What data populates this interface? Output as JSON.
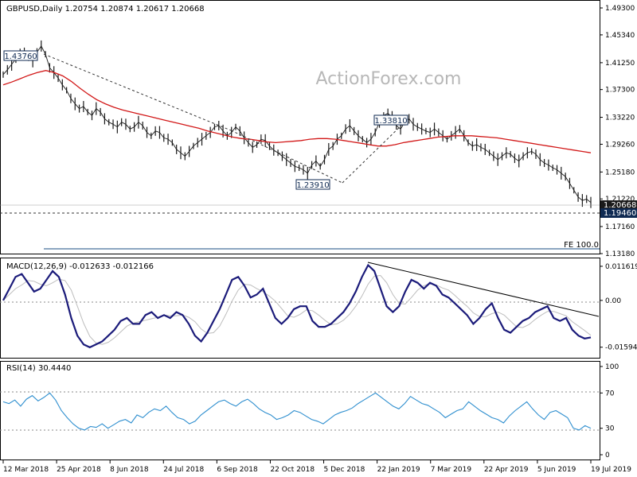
{
  "header": {
    "symbol_line": "GBPUSD,Daily  1.20754 1.20874 1.20617 1.20668",
    "watermark": "ActionForex.com"
  },
  "chart_data": [
    {
      "type": "candlestick",
      "title": "GBPUSD,Daily  1.20754 1.20874 1.20617 1.20668",
      "ylim": [
        1.1318,
        1.493
      ],
      "y_ticks": [
        "1.49300",
        "1.45340",
        "1.41250",
        "1.37300",
        "1.33220",
        "1.29260",
        "1.25180",
        "1.21220",
        "1.17160",
        "1.13180"
      ],
      "x_ticks": [
        "12 Mar 2018",
        "25 Apr 2018",
        "8 Jun 2018",
        "24 Jul 2018",
        "6 Sep 2018",
        "22 Oct 2018",
        "5 Dec 2018",
        "22 Jan 2019",
        "7 Mar 2019",
        "22 Apr 2019",
        "5 Jun 2019",
        "19 Jul 2019"
      ],
      "series": [
        {
          "name": "price",
          "values": [
            1.395,
            1.402,
            1.41,
            1.418,
            1.425,
            1.43,
            1.422,
            1.415,
            1.428,
            1.437,
            1.425,
            1.405,
            1.398,
            1.39,
            1.38,
            1.372,
            1.36,
            1.352,
            1.345,
            1.348,
            1.34,
            1.335,
            1.345,
            1.34,
            1.33,
            1.325,
            1.322,
            1.318,
            1.325,
            1.322,
            1.315,
            1.318,
            1.325,
            1.32,
            1.31,
            1.305,
            1.312,
            1.31,
            1.302,
            1.3,
            1.295,
            1.285,
            1.28,
            1.275,
            1.282,
            1.29,
            1.295,
            1.3,
            1.305,
            1.31,
            1.318,
            1.32,
            1.312,
            1.305,
            1.31,
            1.318,
            1.312,
            1.302,
            1.295,
            1.288,
            1.292,
            1.3,
            1.298,
            1.29,
            1.284,
            1.28,
            1.275,
            1.27,
            1.265,
            1.26,
            1.258,
            1.255,
            1.25,
            1.262,
            1.268,
            1.26,
            1.27,
            1.285,
            1.29,
            1.3,
            1.305,
            1.315,
            1.32,
            1.312,
            1.305,
            1.3,
            1.295,
            1.3,
            1.31,
            1.325,
            1.335,
            1.338,
            1.332,
            1.32,
            1.315,
            1.325,
            1.33,
            1.322,
            1.318,
            1.315,
            1.312,
            1.31,
            1.315,
            1.31,
            1.305,
            1.3,
            1.305,
            1.31,
            1.315,
            1.305,
            1.295,
            1.29,
            1.292,
            1.288,
            1.285,
            1.28,
            1.275,
            1.27,
            1.275,
            1.28,
            1.278,
            1.272,
            1.268,
            1.275,
            1.28,
            1.282,
            1.278,
            1.27,
            1.265,
            1.262,
            1.258,
            1.255,
            1.25,
            1.245,
            1.235,
            1.225,
            1.215,
            1.21,
            1.212,
            1.207
          ]
        },
        {
          "name": "moving average",
          "values": [
            1.38,
            1.384,
            1.389,
            1.394,
            1.398,
            1.401,
            1.398,
            1.393,
            1.385,
            1.375,
            1.366,
            1.358,
            1.352,
            1.347,
            1.343,
            1.34,
            1.337,
            1.334,
            1.331,
            1.328,
            1.325,
            1.322,
            1.319,
            1.316,
            1.312,
            1.309,
            1.306,
            1.303,
            1.301,
            1.3,
            1.298,
            1.296,
            1.295,
            1.296,
            1.297,
            1.298,
            1.3,
            1.301,
            1.301,
            1.3,
            1.298,
            1.296,
            1.294,
            1.292,
            1.29,
            1.29,
            1.292,
            1.295,
            1.297,
            1.299,
            1.301,
            1.303,
            1.304,
            1.305,
            1.305,
            1.305,
            1.304,
            1.303,
            1.302,
            1.3,
            1.298,
            1.296,
            1.294,
            1.292,
            1.29,
            1.288,
            1.286,
            1.284,
            1.282,
            1.28
          ]
        }
      ],
      "annotations": [
        "1.43760",
        "1.23910",
        "1.33810",
        "1.20668",
        "1.19460",
        "FE 100.0"
      ]
    },
    {
      "type": "line",
      "title": "MACD(12,26,9) -0.012633 -0.012166",
      "ylim": [
        -0.019,
        0.0135
      ],
      "y_ticks": [
        "0.011619",
        "0.00",
        "-0.015949"
      ],
      "series": [
        {
          "name": "MACD",
          "values": [
            0.0,
            0.004,
            0.008,
            0.009,
            0.006,
            0.003,
            0.004,
            0.007,
            0.01,
            0.008,
            0.002,
            -0.006,
            -0.012,
            -0.015,
            -0.016,
            -0.015,
            -0.014,
            -0.012,
            -0.01,
            -0.007,
            -0.006,
            -0.008,
            -0.008,
            -0.005,
            -0.004,
            -0.006,
            -0.005,
            -0.006,
            -0.004,
            -0.005,
            -0.008,
            -0.012,
            -0.014,
            -0.011,
            -0.007,
            -0.003,
            0.002,
            0.007,
            0.008,
            0.005,
            0.001,
            0.002,
            0.004,
            -0.001,
            -0.006,
            -0.008,
            -0.006,
            -0.003,
            -0.002,
            -0.002,
            -0.007,
            -0.009,
            -0.009,
            -0.008,
            -0.006,
            -0.004,
            -0.001,
            0.003,
            0.008,
            0.012,
            0.01,
            0.004,
            -0.002,
            -0.004,
            -0.002,
            0.003,
            0.007,
            0.006,
            0.004,
            0.006,
            0.005,
            0.002,
            0.001,
            -0.001,
            -0.003,
            -0.005,
            -0.008,
            -0.006,
            -0.003,
            -0.001,
            -0.006,
            -0.01,
            -0.011,
            -0.009,
            -0.007,
            -0.006,
            -0.004,
            -0.003,
            -0.002,
            -0.006,
            -0.007,
            -0.006,
            -0.01,
            -0.012,
            -0.013,
            -0.0126
          ]
        }
      ]
    },
    {
      "type": "line",
      "title": "RSI(14) 30.4440",
      "ylim": [
        0,
        100
      ],
      "y_ticks": [
        "100",
        "70",
        "30",
        "0"
      ],
      "series": [
        {
          "name": "RSI",
          "values": [
            60,
            58,
            62,
            55,
            63,
            67,
            61,
            65,
            70,
            62,
            50,
            42,
            35,
            30,
            28,
            32,
            31,
            35,
            30,
            34,
            38,
            40,
            36,
            45,
            42,
            48,
            52,
            50,
            55,
            48,
            42,
            40,
            35,
            38,
            45,
            50,
            55,
            60,
            62,
            58,
            55,
            60,
            63,
            58,
            52,
            48,
            45,
            40,
            42,
            45,
            50,
            48,
            44,
            40,
            38,
            35,
            40,
            45,
            48,
            50,
            53,
            58,
            62,
            66,
            70,
            65,
            60,
            55,
            52,
            58,
            66,
            62,
            58,
            56,
            52,
            48,
            42,
            46,
            50,
            52,
            60,
            55,
            50,
            46,
            42,
            40,
            36,
            44,
            50,
            55,
            60,
            52,
            45,
            40,
            48,
            50,
            46,
            42,
            30,
            28,
            33,
            30
          ]
        }
      ]
    }
  ],
  "colors": {
    "price": "#1a1a1a",
    "ma": "#d21818",
    "macd": "#1b1b7a",
    "signal": "#bdbdbd",
    "rsi": "#2f8fcf",
    "grid": "#888888",
    "label_box": "#0f2a52"
  }
}
